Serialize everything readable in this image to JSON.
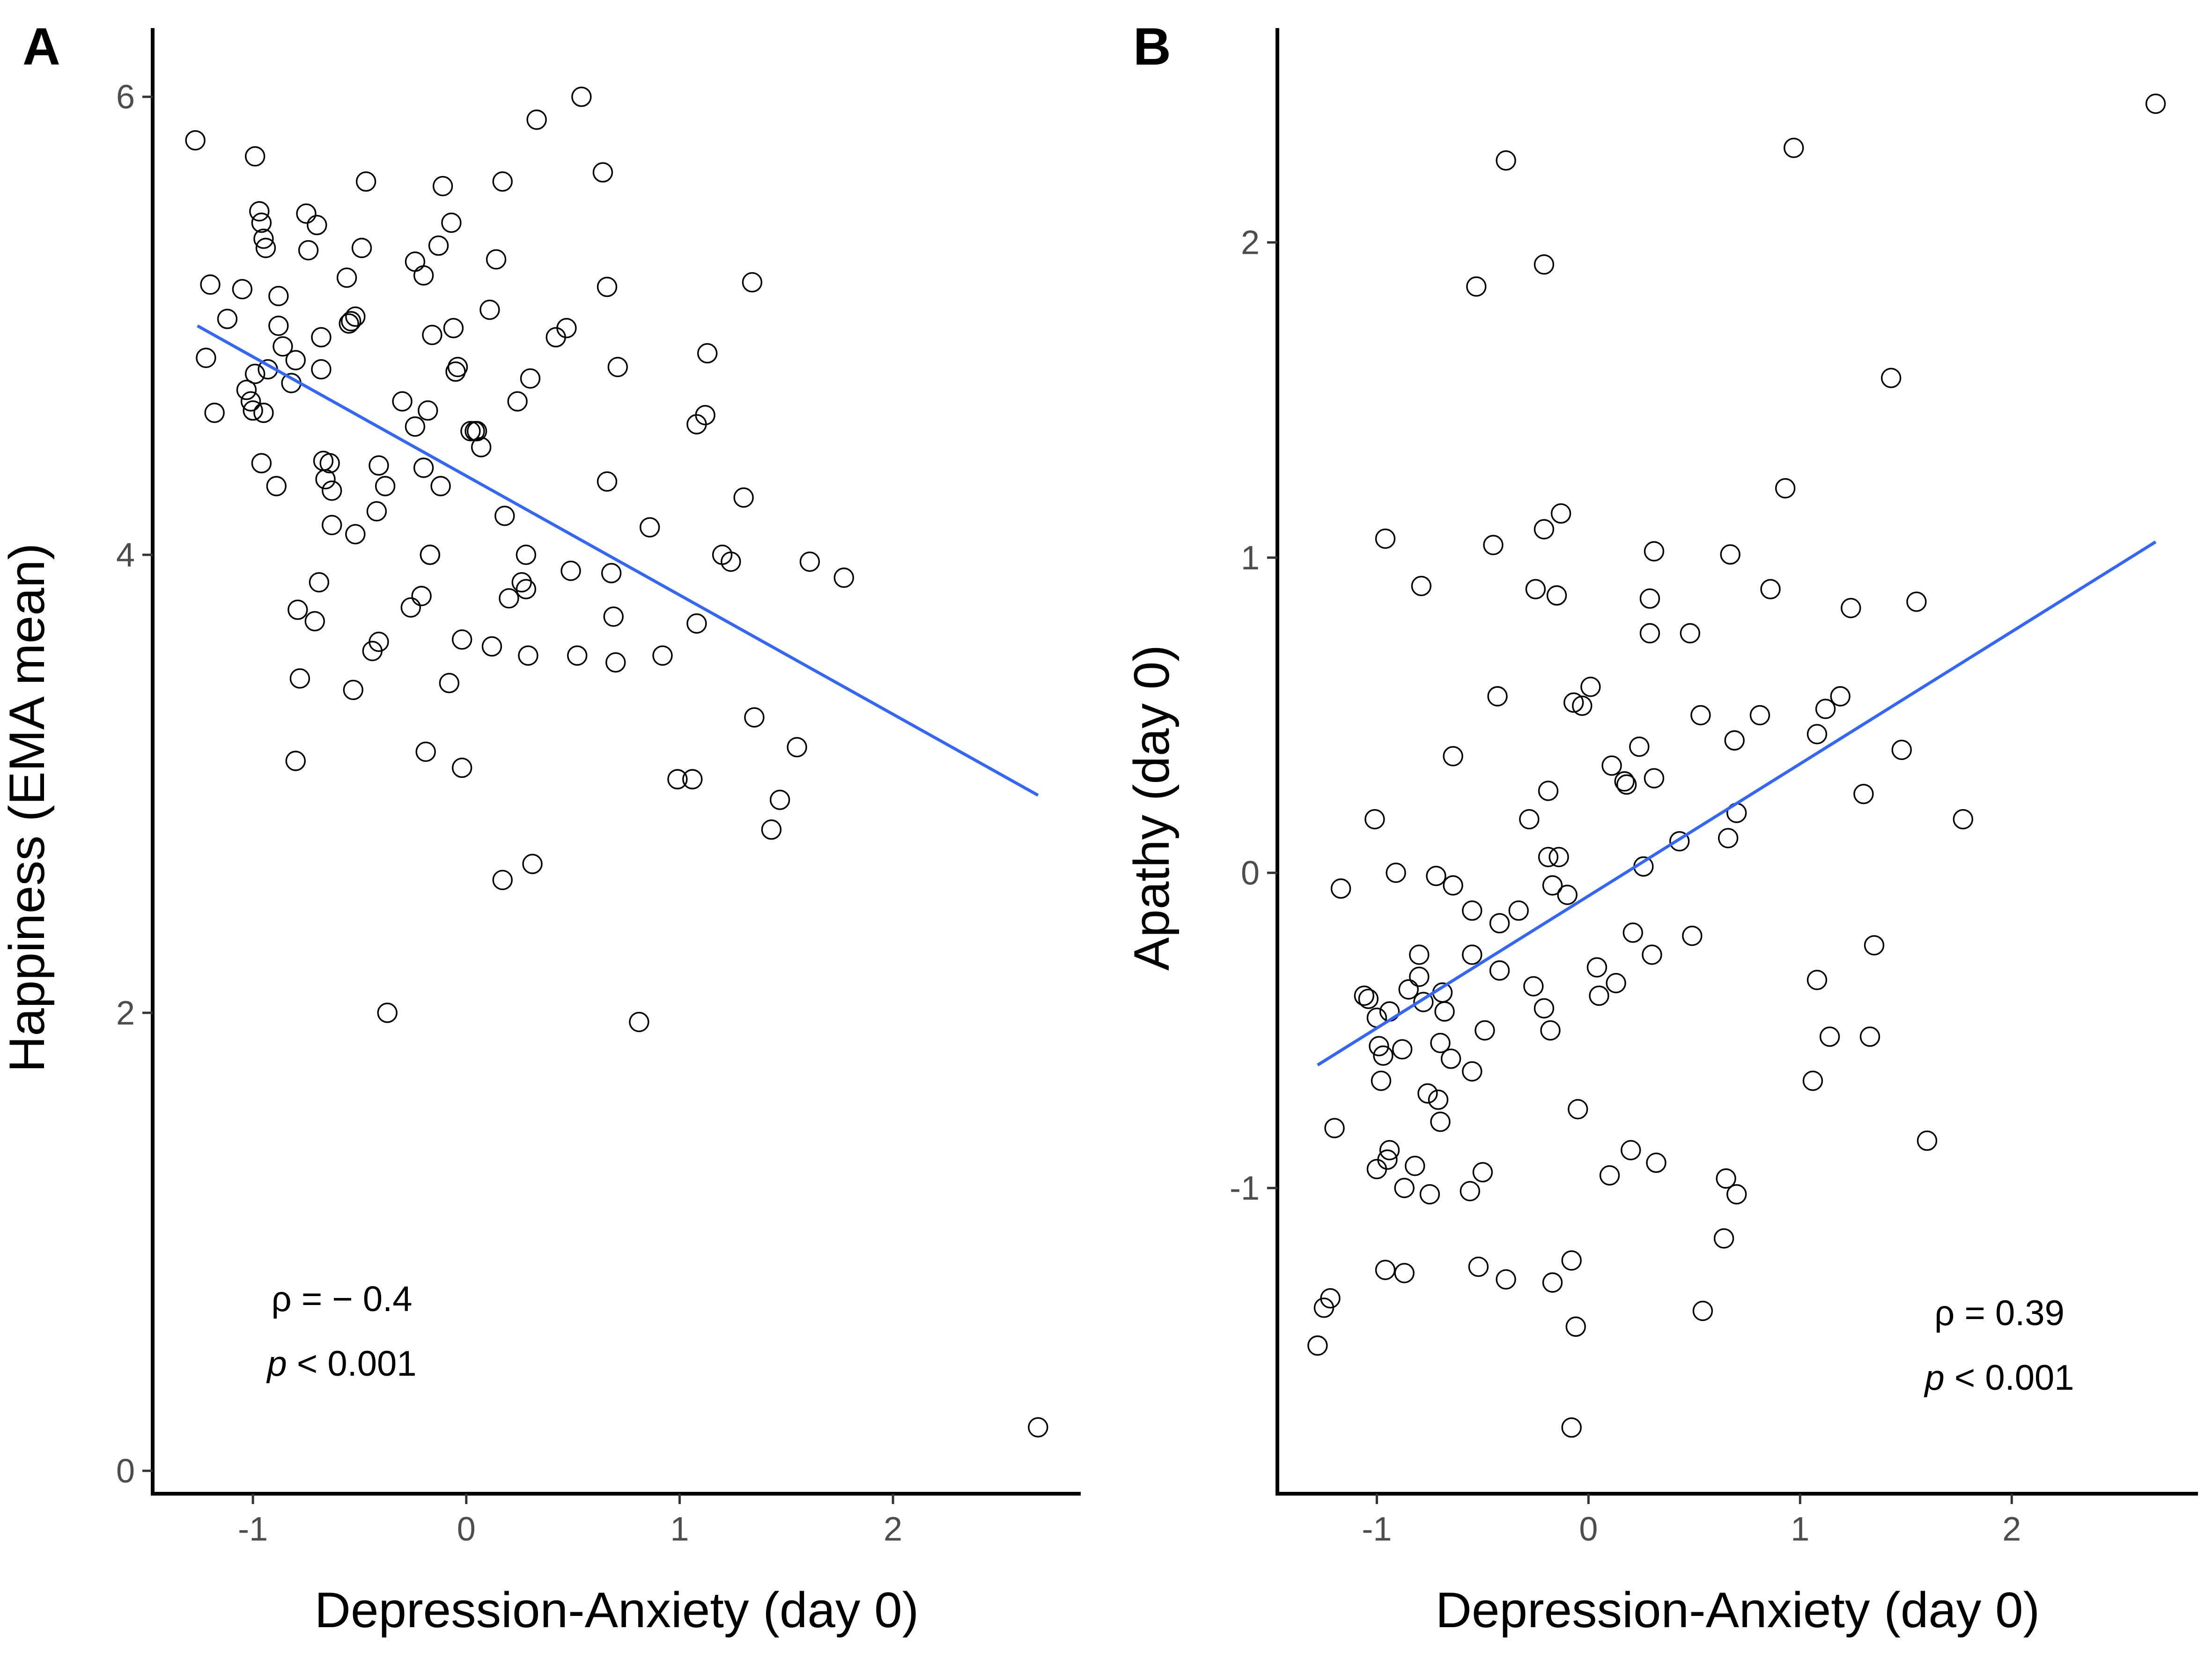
{
  "chart_data": [
    {
      "type": "scatter",
      "panel": "A",
      "xlabel": "Depression-Anxiety (day 0)",
      "ylabel": "Happiness (EMA mean)",
      "xlim": [
        -1.47,
        2.88
      ],
      "ylim": [
        -0.1,
        6.3
      ],
      "x_ticks": [
        -1,
        0,
        1,
        2
      ],
      "x_tick_labels": [
        "-1",
        "0",
        "1",
        "2"
      ],
      "y_ticks": [
        0,
        2,
        4,
        6
      ],
      "y_tick_labels": [
        "0",
        "2",
        "4",
        "6"
      ],
      "grid": false,
      "fit_line": {
        "x": [
          -1.26,
          2.68
        ],
        "y": [
          5.0,
          2.95
        ],
        "color": "#3366ff"
      },
      "annotation": {
        "rho_text": "ρ = − 0.4",
        "p_symbol": "p",
        "p_text": " < 0.001"
      },
      "points": [
        [
          -1.27,
          5.81
        ],
        [
          -1.22,
          4.86
        ],
        [
          -1.2,
          5.18
        ],
        [
          -1.18,
          4.62
        ],
        [
          -1.12,
          5.03
        ],
        [
          -1.05,
          5.16
        ],
        [
          -1.03,
          4.72
        ],
        [
          -1.01,
          4.67
        ],
        [
          -1.0,
          4.63
        ],
        [
          -0.99,
          5.74
        ],
        [
          -0.99,
          4.79
        ],
        [
          -0.97,
          5.5
        ],
        [
          -0.96,
          5.45
        ],
        [
          -0.96,
          4.4
        ],
        [
          -0.95,
          5.38
        ],
        [
          -0.95,
          4.62
        ],
        [
          -0.94,
          5.34
        ],
        [
          -0.93,
          4.81
        ],
        [
          -0.89,
          4.3
        ],
        [
          -0.88,
          5.0
        ],
        [
          -0.88,
          5.13
        ],
        [
          -0.86,
          4.91
        ],
        [
          -0.82,
          4.75
        ],
        [
          -0.8,
          4.85
        ],
        [
          -0.8,
          3.1
        ],
        [
          -0.79,
          3.76
        ],
        [
          -0.78,
          3.46
        ],
        [
          -0.75,
          5.49
        ],
        [
          -0.74,
          5.33
        ],
        [
          -0.71,
          3.71
        ],
        [
          -0.7,
          5.44
        ],
        [
          -0.69,
          3.88
        ],
        [
          -0.68,
          4.95
        ],
        [
          -0.68,
          4.81
        ],
        [
          -0.67,
          4.41
        ],
        [
          -0.66,
          4.33
        ],
        [
          -0.64,
          4.4
        ],
        [
          -0.63,
          4.13
        ],
        [
          -0.63,
          4.28
        ],
        [
          -0.56,
          5.21
        ],
        [
          -0.55,
          5.01
        ],
        [
          -0.54,
          5.02
        ],
        [
          -0.53,
          3.41
        ],
        [
          -0.52,
          4.09
        ],
        [
          -0.52,
          5.04
        ],
        [
          -0.49,
          5.34
        ],
        [
          -0.47,
          5.63
        ],
        [
          -0.44,
          3.58
        ],
        [
          -0.42,
          4.19
        ],
        [
          -0.41,
          4.39
        ],
        [
          -0.41,
          3.62
        ],
        [
          -0.38,
          4.3
        ],
        [
          -0.37,
          2.0
        ],
        [
          -0.3,
          4.67
        ],
        [
          -0.26,
          3.77
        ],
        [
          -0.24,
          4.56
        ],
        [
          -0.24,
          5.28
        ],
        [
          -0.21,
          3.82
        ],
        [
          -0.2,
          5.22
        ],
        [
          -0.2,
          4.38
        ],
        [
          -0.19,
          3.14
        ],
        [
          -0.18,
          4.63
        ],
        [
          -0.17,
          4.0
        ],
        [
          -0.17,
          4.0
        ],
        [
          -0.16,
          4.96
        ],
        [
          -0.13,
          5.35
        ],
        [
          -0.12,
          4.3
        ],
        [
          -0.11,
          5.61
        ],
        [
          -0.08,
          3.44
        ],
        [
          -0.07,
          5.45
        ],
        [
          -0.06,
          4.99
        ],
        [
          -0.05,
          4.8
        ],
        [
          -0.04,
          4.82
        ],
        [
          -0.02,
          3.63
        ],
        [
          -0.02,
          3.07
        ],
        [
          0.02,
          4.54
        ],
        [
          0.04,
          4.54
        ],
        [
          0.05,
          4.54
        ],
        [
          0.07,
          4.47
        ],
        [
          0.11,
          5.07
        ],
        [
          0.12,
          3.6
        ],
        [
          0.14,
          5.29
        ],
        [
          0.17,
          5.63
        ],
        [
          0.17,
          2.58
        ],
        [
          0.18,
          4.17
        ],
        [
          0.2,
          3.81
        ],
        [
          0.24,
          4.67
        ],
        [
          0.26,
          3.88
        ],
        [
          0.28,
          4.0
        ],
        [
          0.28,
          3.85
        ],
        [
          0.29,
          3.56
        ],
        [
          0.3,
          4.77
        ],
        [
          0.31,
          2.65
        ],
        [
          0.33,
          5.9
        ],
        [
          0.42,
          4.95
        ],
        [
          0.47,
          4.99
        ],
        [
          0.49,
          3.93
        ],
        [
          0.52,
          3.56
        ],
        [
          0.54,
          6.0
        ],
        [
          0.64,
          5.67
        ],
        [
          0.66,
          5.17
        ],
        [
          0.66,
          4.32
        ],
        [
          0.68,
          3.92
        ],
        [
          0.69,
          3.73
        ],
        [
          0.7,
          3.53
        ],
        [
          0.71,
          4.82
        ],
        [
          0.81,
          1.96
        ],
        [
          0.86,
          4.12
        ],
        [
          0.92,
          3.56
        ],
        [
          0.99,
          3.02
        ],
        [
          1.06,
          3.02
        ],
        [
          1.08,
          3.7
        ],
        [
          1.08,
          4.57
        ],
        [
          1.12,
          4.61
        ],
        [
          1.13,
          4.88
        ],
        [
          1.2,
          4.0
        ],
        [
          1.24,
          3.97
        ],
        [
          1.3,
          4.25
        ],
        [
          1.34,
          5.19
        ],
        [
          1.35,
          3.29
        ],
        [
          1.43,
          2.8
        ],
        [
          1.47,
          2.93
        ],
        [
          1.55,
          3.16
        ],
        [
          1.61,
          3.97
        ],
        [
          1.77,
          3.9
        ],
        [
          2.68,
          0.19
        ]
      ]
    },
    {
      "type": "scatter",
      "panel": "B",
      "xlabel": "Depression-Anxiety (day 0)",
      "ylabel": "Apathy (day 0)",
      "xlim": [
        -1.47,
        2.88
      ],
      "ylim": [
        -1.97,
        2.68
      ],
      "x_ticks": [
        -1,
        0,
        1,
        2
      ],
      "x_tick_labels": [
        "-1",
        "0",
        "1",
        "2"
      ],
      "y_ticks": [
        -1,
        0,
        1,
        2
      ],
      "y_tick_labels": [
        "-1",
        "0",
        "1",
        "2"
      ],
      "grid": false,
      "fit_line": {
        "x": [
          -1.28,
          2.68
        ],
        "y": [
          -0.61,
          1.05
        ],
        "color": "#3366ff"
      },
      "annotation": {
        "rho_text": "ρ = 0.39",
        "p_symbol": "p",
        "p_text": " < 0.001"
      },
      "points": [
        [
          -1.28,
          -1.5
        ],
        [
          -1.25,
          -1.38
        ],
        [
          -1.22,
          -1.35
        ],
        [
          -1.2,
          -0.81
        ],
        [
          -1.17,
          -0.05
        ],
        [
          -1.06,
          -0.39
        ],
        [
          -1.04,
          -0.4
        ],
        [
          -1.01,
          0.17
        ],
        [
          -1.0,
          -0.46
        ],
        [
          -1.0,
          -0.94
        ],
        [
          -0.99,
          -0.55
        ],
        [
          -0.98,
          -0.66
        ],
        [
          -0.97,
          -0.58
        ],
        [
          -0.96,
          -1.26
        ],
        [
          -0.96,
          1.06
        ],
        [
          -0.95,
          -0.91
        ],
        [
          -0.94,
          -0.88
        ],
        [
          -0.94,
          -0.44
        ],
        [
          -0.91,
          0.0
        ],
        [
          -0.88,
          -0.56
        ],
        [
          -0.87,
          -1.0
        ],
        [
          -0.87,
          -1.27
        ],
        [
          -0.85,
          -0.37
        ],
        [
          -0.82,
          -0.93
        ],
        [
          -0.8,
          -0.33
        ],
        [
          -0.8,
          -0.26
        ],
        [
          -0.79,
          0.91
        ],
        [
          -0.78,
          -0.41
        ],
        [
          -0.76,
          -0.7
        ],
        [
          -0.75,
          -1.02
        ],
        [
          -0.72,
          -0.01
        ],
        [
          -0.71,
          -0.72
        ],
        [
          -0.7,
          -0.79
        ],
        [
          -0.7,
          -0.54
        ],
        [
          -0.69,
          -0.38
        ],
        [
          -0.68,
          -0.44
        ],
        [
          -0.65,
          -0.59
        ],
        [
          -0.64,
          0.37
        ],
        [
          -0.64,
          -0.04
        ],
        [
          -0.56,
          -1.01
        ],
        [
          -0.55,
          -0.63
        ],
        [
          -0.55,
          -0.26
        ],
        [
          -0.55,
          -0.12
        ],
        [
          -0.53,
          1.86
        ],
        [
          -0.52,
          -1.25
        ],
        [
          -0.5,
          -0.95
        ],
        [
          -0.49,
          -0.5
        ],
        [
          -0.45,
          1.04
        ],
        [
          -0.43,
          0.56
        ],
        [
          -0.42,
          -0.31
        ],
        [
          -0.42,
          -0.16
        ],
        [
          -0.39,
          2.26
        ],
        [
          -0.39,
          -1.29
        ],
        [
          -0.33,
          -0.12
        ],
        [
          -0.28,
          0.17
        ],
        [
          -0.26,
          -0.36
        ],
        [
          -0.25,
          0.9
        ],
        [
          -0.21,
          1.93
        ],
        [
          -0.21,
          1.09
        ],
        [
          -0.21,
          -0.43
        ],
        [
          -0.19,
          0.26
        ],
        [
          -0.19,
          0.05
        ],
        [
          -0.18,
          -0.5
        ],
        [
          -0.17,
          -1.3
        ],
        [
          -0.17,
          -0.04
        ],
        [
          -0.15,
          0.88
        ],
        [
          -0.14,
          0.05
        ],
        [
          -0.13,
          1.14
        ],
        [
          -0.1,
          -0.07
        ],
        [
          -0.08,
          -1.23
        ],
        [
          -0.07,
          0.54
        ],
        [
          -0.06,
          -1.44
        ],
        [
          -0.05,
          -0.75
        ],
        [
          -0.03,
          0.53
        ],
        [
          0.01,
          0.59
        ],
        [
          0.04,
          -0.3
        ],
        [
          0.05,
          -0.39
        ],
        [
          0.1,
          -0.96
        ],
        [
          0.11,
          0.34
        ],
        [
          0.13,
          -0.35
        ],
        [
          0.17,
          0.29
        ],
        [
          0.18,
          0.28
        ],
        [
          0.2,
          -0.88
        ],
        [
          0.21,
          -0.19
        ],
        [
          0.24,
          0.4
        ],
        [
          0.26,
          0.02
        ],
        [
          0.29,
          0.76
        ],
        [
          0.29,
          0.87
        ],
        [
          0.3,
          -0.26
        ],
        [
          0.31,
          1.02
        ],
        [
          0.31,
          0.3
        ],
        [
          0.32,
          -0.92
        ],
        [
          0.43,
          0.1
        ],
        [
          0.48,
          0.76
        ],
        [
          0.49,
          -0.2
        ],
        [
          0.53,
          0.5
        ],
        [
          0.54,
          -1.39
        ],
        [
          0.64,
          -1.16
        ],
        [
          0.65,
          -0.97
        ],
        [
          0.66,
          0.11
        ],
        [
          0.67,
          1.01
        ],
        [
          0.69,
          0.42
        ],
        [
          0.7,
          -1.02
        ],
        [
          0.7,
          0.19
        ],
        [
          0.81,
          0.5
        ],
        [
          0.86,
          0.9
        ],
        [
          0.93,
          1.22
        ],
        [
          0.97,
          2.3
        ],
        [
          1.06,
          -0.66
        ],
        [
          1.08,
          0.44
        ],
        [
          1.08,
          -0.34
        ],
        [
          1.12,
          0.52
        ],
        [
          1.14,
          -0.52
        ],
        [
          1.19,
          0.56
        ],
        [
          1.24,
          0.84
        ],
        [
          1.3,
          0.25
        ],
        [
          1.33,
          -0.52
        ],
        [
          1.35,
          -0.23
        ],
        [
          1.43,
          1.57
        ],
        [
          1.48,
          0.39
        ],
        [
          1.55,
          0.86
        ],
        [
          1.6,
          -0.85
        ],
        [
          1.77,
          0.17
        ],
        [
          2.68,
          2.44
        ],
        [
          -0.08,
          -1.76
        ]
      ]
    }
  ]
}
